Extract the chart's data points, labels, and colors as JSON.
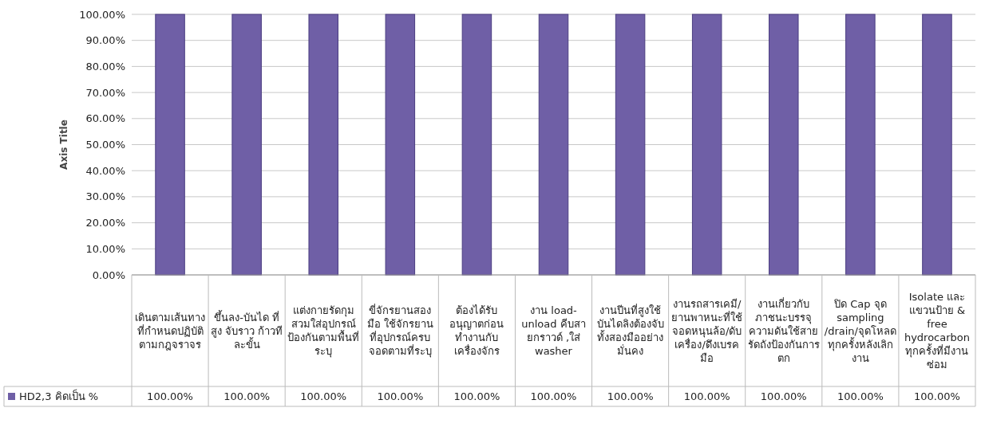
{
  "chart_data": {
    "type": "bar",
    "ylabel": "Axis Title",
    "categories": [
      "เดินตามเส้นทางที่กำหนดปฏิบัติตามกฎจราจร",
      "ขึ้นลง-บันได ที่สูง จับราว ก้าวทีละขั้น",
      "แต่งกายรัดกุม สวมใส่อุปกรณ์ป้องกันตามพื้นที่ระบุ",
      "ขี่จักรยานสองมือ ใช้จักรยานที่อุปกรณ์ครบ จอดตามที่ระบุ",
      "ต้องได้รับอนุญาตก่อนทำงานกับเครื่องจักร",
      "งาน load-unload คีบสายกราวด์ ,ใส่ washer",
      "งานปีนที่สูงใช้บันไดลิงต้องจับทั้งสองมืออย่างมั่นคง",
      "งานรถสารเคมี/ยานพาหนะที่ใช้ จอดหนุนล้อ/ดับเครื่อง/ดึงเบรคมือ",
      "งานเกี่ยวกับภาชนะบรรจุความดันใช้สายรัดถังป้องกันการตก",
      "ปิด Cap จุด sampling /drain/จุดโหลดทุกครั้งหลังเลิกงาน",
      "Isolate และแขวนป้าย & free hydrocarbon ทุกครั้งที่มีงานซ่อม"
    ],
    "series": [
      {
        "name": "HD2,3 คิดเป็น %",
        "color": "#6f5fa6",
        "values": [
          100,
          100,
          100,
          100,
          100,
          100,
          100,
          100,
          100,
          100,
          100
        ],
        "value_labels": [
          "100.00%",
          "100.00%",
          "100.00%",
          "100.00%",
          "100.00%",
          "100.00%",
          "100.00%",
          "100.00%",
          "100.00%",
          "100.00%",
          "100.00%"
        ]
      }
    ],
    "ylim": [
      0,
      100
    ],
    "yticks": [
      {
        "value": 0,
        "label": "0.00%"
      },
      {
        "value": 10,
        "label": "10.00%"
      },
      {
        "value": 20,
        "label": "20.00%"
      },
      {
        "value": 30,
        "label": "30.00%"
      },
      {
        "value": 40,
        "label": "40.00%"
      },
      {
        "value": 50,
        "label": "50.00%"
      },
      {
        "value": 60,
        "label": "60.00%"
      },
      {
        "value": 70,
        "label": "70.00%"
      },
      {
        "value": 80,
        "label": "80.00%"
      },
      {
        "value": 90,
        "label": "90.00%"
      },
      {
        "value": 100,
        "label": "100.00%"
      }
    ],
    "grid": "y",
    "legend": "bottom"
  }
}
